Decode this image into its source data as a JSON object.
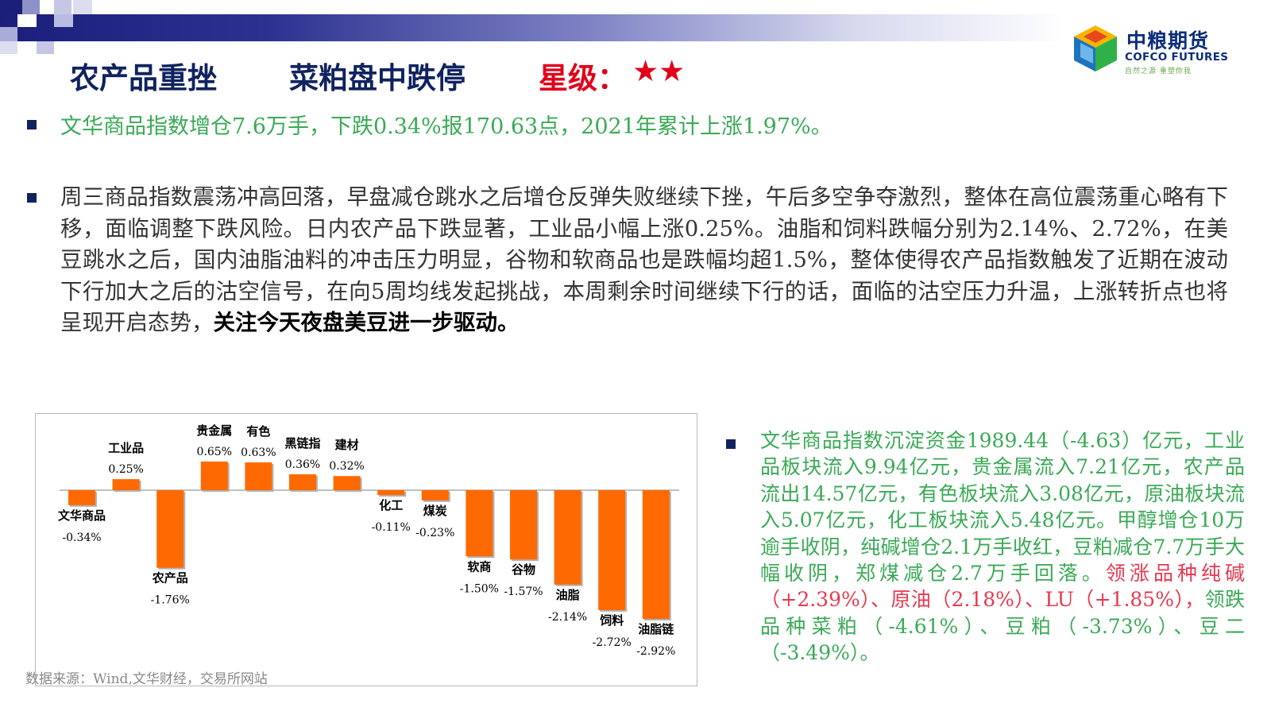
{
  "header": {
    "title_main": "农产品重挫",
    "title_sub": "菜粕盘中跌停",
    "rating_label": "星级：",
    "rating_stars": "★★",
    "rating_value": 2
  },
  "logo": {
    "name_cn": "中粮期货",
    "name_en": "COFCO FUTURES",
    "slogan": "自然之源  重塑你我"
  },
  "paragraphs": {
    "p1": "文华商品指数增仓7.6万手，下跌0.34%报170.63点，2021年累计上涨1.97%。",
    "p2_normal": "周三商品指数震荡冲高回落，早盘减仓跳水之后增仓反弹失败继续下挫，午后多空争夺激烈，整体在高位震荡重心略有下移，面临调整下跌风险。日内农产品下跌显著，工业品小幅上涨0.25%。油脂和饲料跌幅分别为2.14%、2.72%，在美豆跳水之后，国内油脂油料的冲击压力明显，谷物和软商品也是跌幅均超1.5%，整体使得农产品指数触发了近期在波动下行加大之后的沽空信号，在向5周均线发起挑战，本周剩余时间继续下行的话，面临的沽空压力升温，上涨转折点也将呈现开启态势，",
    "p2_bold": "关注今天夜盘美豆进一步驱动。",
    "p3_green": "文华商品指数沉淀资金1989.44（-4.63）亿元，工业品板块流入9.94亿元，贵金属流入7.21亿元，农产品流出14.57亿元，有色板块流入3.08亿元，原油板块流入5.07亿元，化工板块流入5.48亿元。甲醇增仓10万逾手收阴，纯碱增仓2.1万手收红，豆粕减仓7.7万手大幅收阴，郑煤减仓2.7万手回落。",
    "p3_red": "领涨品种纯碱（+2.39%）、原油（2.18%）、LU（+1.85%），",
    "p3_green2": "领跌品种菜粕（-4.61%）、豆粕（-3.73%）、豆二（-3.49%）。"
  },
  "source_note": "数据来源：Wind,文华财经，交易所网站",
  "colors": {
    "bar": "#ff6a00",
    "title": "#10235f",
    "star": "#e0001a",
    "green_text": "#3aaa56",
    "red_text": "#e8384f"
  },
  "chart_data": {
    "type": "bar",
    "categories": [
      "文华商品",
      "工业品",
      "农产品",
      "贵金属",
      "有色",
      "黑链指",
      "建材",
      "化工",
      "煤炭",
      "软商",
      "谷物",
      "油脂",
      "饲料",
      "油脂链"
    ],
    "values": [
      -0.34,
      0.25,
      -1.76,
      0.65,
      0.63,
      0.36,
      0.32,
      -0.11,
      -0.23,
      -1.5,
      -1.57,
      -2.14,
      -2.72,
      -2.92
    ],
    "value_labels": [
      "-0.34%",
      "0.25%",
      "-1.76%",
      "0.65%",
      "0.63%",
      "0.36%",
      "0.32%",
      "-0.11%",
      "-0.23%",
      "-1.50%",
      "-1.57%",
      "-2.14%",
      "-2.72%",
      "-2.92%"
    ],
    "title": "",
    "xlabel": "",
    "ylabel": "",
    "ylim": [
      -2.92,
      0.65
    ],
    "grid": false,
    "legend": "none"
  }
}
